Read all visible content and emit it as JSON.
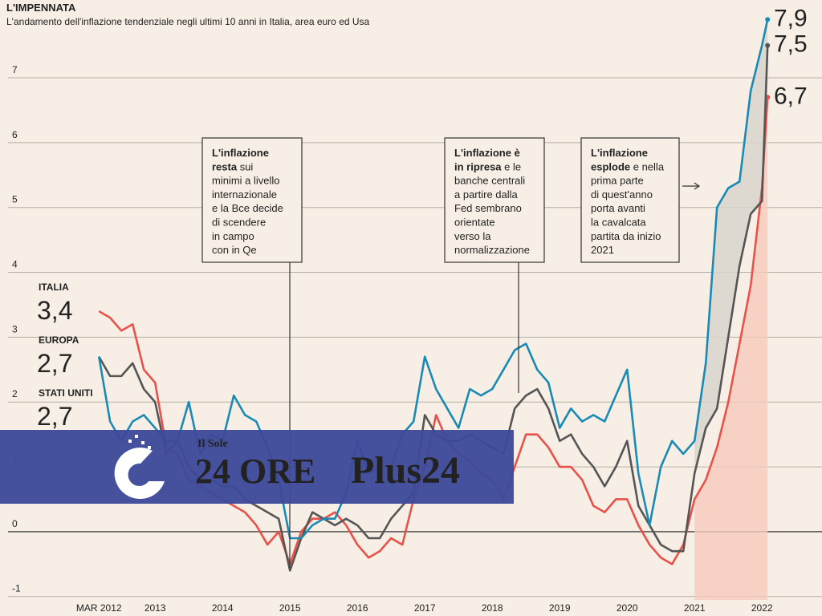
{
  "chart_data": {
    "type": "line",
    "title": "L'IMPENNATA",
    "subtitle": "L'andamento dell'inflazione tendenziale negli ultimi 10 anni in Italia,  area euro ed Usa",
    "x": [
      2012.167,
      2012.333,
      2012.5,
      2012.667,
      2012.833,
      2013,
      2013.167,
      2013.333,
      2013.5,
      2013.667,
      2013.833,
      2014,
      2014.167,
      2014.333,
      2014.5,
      2014.667,
      2014.833,
      2015,
      2015.167,
      2015.333,
      2015.5,
      2015.667,
      2015.833,
      2016,
      2016.167,
      2016.333,
      2016.5,
      2016.667,
      2016.833,
      2017,
      2017.167,
      2017.333,
      2017.5,
      2017.667,
      2017.833,
      2018,
      2018.167,
      2018.333,
      2018.5,
      2018.667,
      2018.833,
      2019,
      2019.167,
      2019.333,
      2019.5,
      2019.667,
      2019.833,
      2020,
      2020.167,
      2020.333,
      2020.5,
      2020.667,
      2020.833,
      2021,
      2021.167,
      2021.333,
      2021.5,
      2021.667,
      2021.833,
      2022,
      2022.083
    ],
    "series": [
      {
        "name": "ITALIA",
        "color": "#e8524a",
        "values": [
          3.4,
          3.3,
          3.1,
          3.2,
          2.5,
          2.3,
          1.3,
          1.2,
          0.8,
          0.7,
          0.6,
          0.5,
          0.4,
          0.3,
          0.1,
          -0.2,
          0.0,
          -0.5,
          0.0,
          0.2,
          0.2,
          0.3,
          0.1,
          -0.2,
          -0.4,
          -0.3,
          -0.1,
          -0.2,
          0.5,
          1.0,
          1.8,
          1.4,
          1.2,
          1.1,
          0.9,
          0.8,
          0.5,
          1.0,
          1.5,
          1.5,
          1.3,
          1.0,
          1.0,
          0.8,
          0.4,
          0.3,
          0.5,
          0.5,
          0.1,
          -0.2,
          -0.4,
          -0.5,
          -0.2,
          0.5,
          0.8,
          1.3,
          2.0,
          2.9,
          3.8,
          5.3,
          6.7
        ],
        "value_labels": [
          "3,4",
          null,
          null,
          null,
          null,
          null,
          null,
          null,
          null,
          null,
          null,
          null,
          null,
          null,
          null,
          null,
          null,
          null,
          null,
          null,
          null,
          null,
          null,
          null,
          null,
          null,
          null,
          null,
          null,
          null,
          null,
          null,
          null,
          null,
          null,
          null,
          null,
          null,
          null,
          null,
          null,
          null,
          null,
          null,
          null,
          null,
          null,
          null,
          null,
          null,
          null,
          null,
          null,
          null,
          null,
          null,
          null,
          null,
          null,
          null,
          "6,7"
        ]
      },
      {
        "name": "EUROPA",
        "color": "#555555",
        "values": [
          2.7,
          2.4,
          2.4,
          2.6,
          2.2,
          2.0,
          1.2,
          1.4,
          1.0,
          0.8,
          0.8,
          0.7,
          0.7,
          0.5,
          0.4,
          0.3,
          0.2,
          -0.6,
          -0.1,
          0.3,
          0.2,
          0.1,
          0.2,
          0.1,
          -0.1,
          -0.1,
          0.2,
          0.4,
          0.6,
          1.8,
          1.5,
          1.4,
          1.4,
          1.5,
          1.4,
          1.3,
          1.2,
          1.9,
          2.1,
          2.2,
          1.9,
          1.4,
          1.5,
          1.2,
          1.0,
          0.7,
          1.0,
          1.4,
          0.4,
          0.1,
          -0.2,
          -0.3,
          -0.3,
          0.9,
          1.6,
          1.9,
          3.0,
          4.1,
          4.9,
          5.1,
          7.5
        ],
        "value_labels": [
          "2,7",
          null,
          null,
          null,
          null,
          null,
          null,
          null,
          null,
          null,
          null,
          null,
          null,
          null,
          null,
          null,
          null,
          null,
          null,
          null,
          null,
          null,
          null,
          null,
          null,
          null,
          null,
          null,
          null,
          null,
          null,
          null,
          null,
          null,
          null,
          null,
          null,
          null,
          null,
          null,
          null,
          null,
          null,
          null,
          null,
          null,
          null,
          null,
          null,
          null,
          null,
          null,
          null,
          null,
          null,
          null,
          null,
          null,
          null,
          null,
          "7,5"
        ]
      },
      {
        "name": "STATI UNITI",
        "color": "#1a8ab5",
        "values": [
          2.7,
          1.7,
          1.4,
          1.7,
          1.8,
          1.6,
          1.4,
          1.4,
          2.0,
          1.2,
          1.5,
          1.4,
          2.1,
          1.8,
          1.7,
          1.3,
          0.8,
          -0.1,
          -0.1,
          0.1,
          0.2,
          0.2,
          0.6,
          1.4,
          0.9,
          1.0,
          1.0,
          1.5,
          1.7,
          2.7,
          2.2,
          1.9,
          1.6,
          2.2,
          2.1,
          2.2,
          2.5,
          2.8,
          2.9,
          2.5,
          2.3,
          1.6,
          1.9,
          1.7,
          1.8,
          1.7,
          2.1,
          2.5,
          0.9,
          0.1,
          1.0,
          1.4,
          1.2,
          1.4,
          2.6,
          5.0,
          5.3,
          5.4,
          6.8,
          7.5,
          7.9
        ],
        "value_labels": [
          "2,7",
          null,
          null,
          null,
          null,
          null,
          null,
          null,
          null,
          null,
          null,
          null,
          null,
          null,
          null,
          null,
          null,
          null,
          null,
          null,
          null,
          null,
          null,
          null,
          null,
          null,
          null,
          null,
          null,
          null,
          null,
          null,
          null,
          null,
          null,
          null,
          null,
          null,
          null,
          null,
          null,
          null,
          null,
          null,
          null,
          null,
          null,
          null,
          null,
          null,
          null,
          null,
          null,
          null,
          null,
          null,
          null,
          null,
          null,
          null,
          "7,9"
        ]
      }
    ],
    "xlim": [
      2010.7,
      2022.89
    ],
    "xticks": [
      {
        "value": 2012.167,
        "label": "MAR 2012"
      },
      2013,
      2014,
      2015,
      2016,
      2017,
      2018,
      2019,
      2020,
      2021,
      2022
    ],
    "ylim": [
      -1.3,
      8.2
    ],
    "yticks": [
      -1,
      0,
      1,
      2,
      3,
      4,
      5,
      6,
      7
    ],
    "grid": true,
    "annotations": [
      {
        "lines": [
          [
            {
              "text": "L'inflazione",
              "bold": true
            }
          ],
          [
            {
              "text": "resta",
              "bold": true
            },
            {
              "text": " sui",
              "bold": false
            }
          ],
          [
            {
              "text": "minimi a livello",
              "bold": false
            }
          ],
          [
            {
              "text": "internazionale",
              "bold": false
            }
          ],
          [
            {
              "text": "e la Bce decide",
              "bold": false
            }
          ],
          [
            {
              "text": "di scendere",
              "bold": false
            }
          ],
          [
            {
              "text": "in campo",
              "bold": false
            }
          ],
          [
            {
              "text": "con in Qe",
              "bold": false
            }
          ]
        ]
      },
      {
        "lines": [
          [
            {
              "text": "L'inflazione è",
              "bold": true
            }
          ],
          [
            {
              "text": "in ripresa",
              "bold": true
            },
            {
              "text": " e le",
              "bold": false
            }
          ],
          [
            {
              "text": "banche centrali",
              "bold": false
            }
          ],
          [
            {
              "text": "a partire dalla",
              "bold": false
            }
          ],
          [
            {
              "text": "Fed sembrano",
              "bold": false
            }
          ],
          [
            {
              "text": "orientate",
              "bold": false
            }
          ],
          [
            {
              "text": "verso la",
              "bold": false
            }
          ],
          [
            {
              "text": "normalizzazione",
              "bold": false
            }
          ]
        ]
      },
      {
        "lines": [
          [
            {
              "text": "L'inflazione",
              "bold": true
            }
          ],
          [
            {
              "text": "esplode",
              "bold": true
            },
            {
              "text": " e nella",
              "bold": false
            }
          ],
          [
            {
              "text": "prima parte",
              "bold": false
            }
          ],
          [
            {
              "text": "di quest'anno",
              "bold": false
            }
          ],
          [
            {
              "text": "porta avanti",
              "bold": false
            }
          ],
          [
            {
              "text": "la cavalcata",
              "bold": false
            }
          ],
          [
            {
              "text": "partita da inizio",
              "bold": false
            }
          ],
          [
            {
              "text": "2021",
              "bold": false
            }
          ]
        ]
      }
    ]
  },
  "watermark": {
    "small": "Il Sole",
    "brand": "24 ORE",
    "product": "Plus24"
  }
}
